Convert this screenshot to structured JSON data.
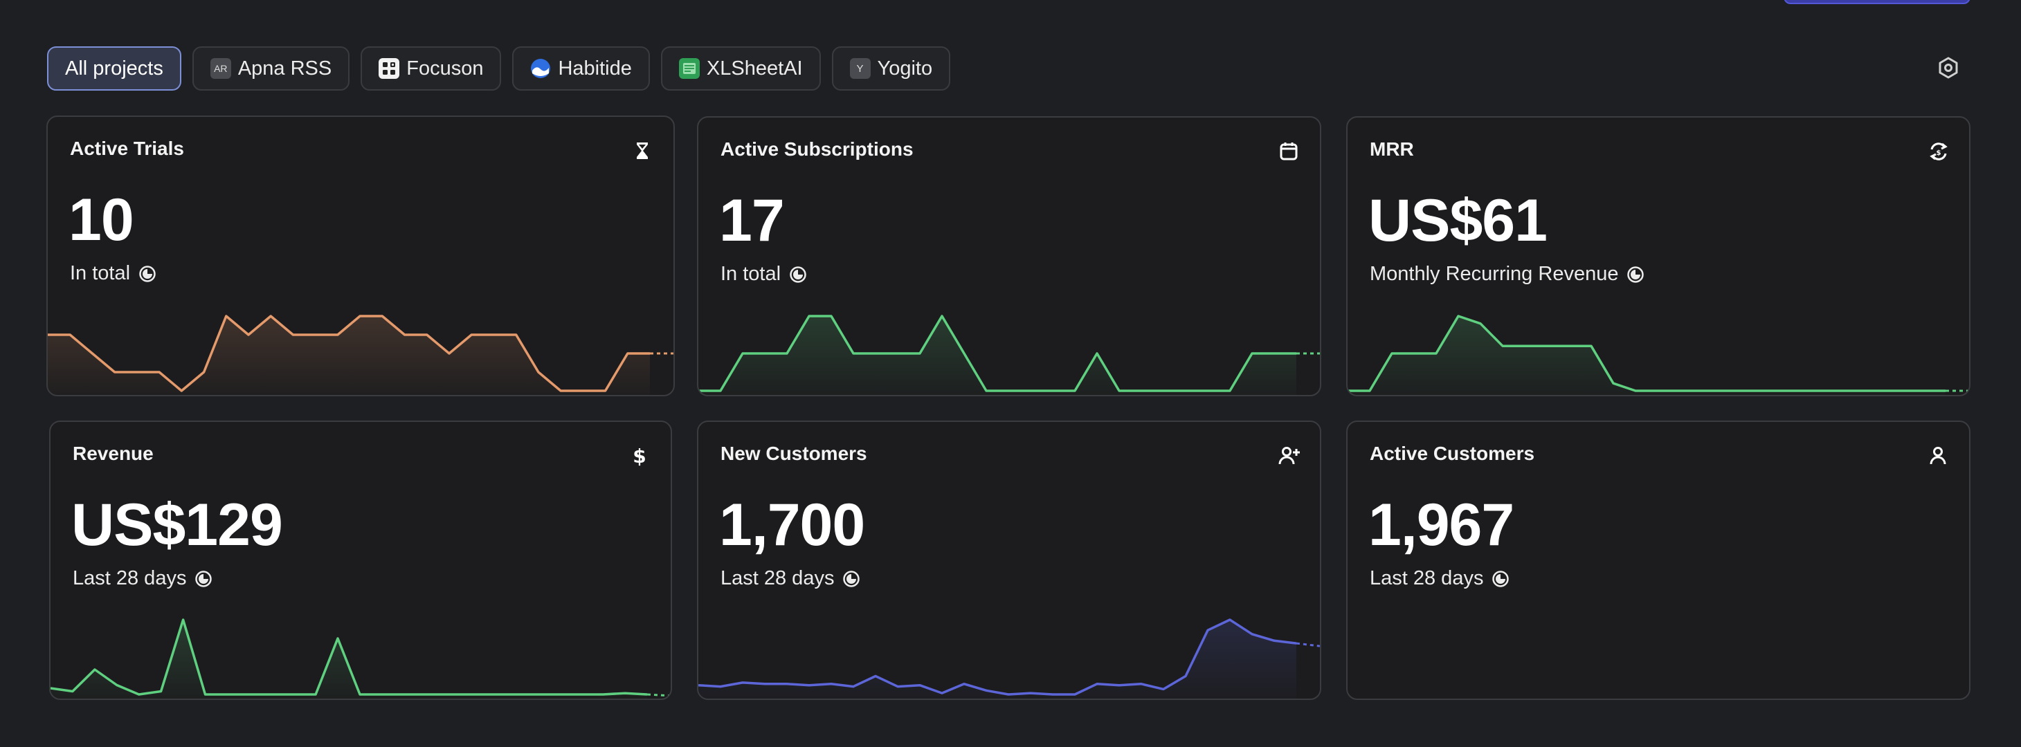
{
  "filters": [
    {
      "label": "All projects",
      "active": true,
      "icon": ""
    },
    {
      "label": "Apna RSS",
      "active": false,
      "icon": "AR"
    },
    {
      "label": "Focuson",
      "active": false,
      "icon": "focuson-app-icon"
    },
    {
      "label": "Habitide",
      "active": false,
      "icon": "habitide-app-icon"
    },
    {
      "label": "XLSheetAI",
      "active": false,
      "icon": "xlsheetai-app-icon"
    },
    {
      "label": "Yogito",
      "active": false,
      "icon": "Y"
    }
  ],
  "settings_icon": "settings-hex-icon",
  "cards": [
    {
      "title": "Active Trials",
      "icon": "hourglass-icon",
      "value": "10",
      "subtitle": "In total",
      "color": "#e59a6b",
      "chart_data": {
        "type": "line",
        "values": [
          3,
          3,
          2,
          1,
          1,
          1,
          0,
          1,
          4,
          3,
          4,
          3,
          3,
          3,
          4,
          4,
          3,
          3,
          2,
          3,
          3,
          3,
          1,
          0,
          0,
          0,
          2,
          2
        ],
        "projected_tail": true
      }
    },
    {
      "title": "Active Subscriptions",
      "icon": "calendar-icon",
      "value": "17",
      "subtitle": "In total",
      "color": "#5fcf80",
      "chart_data": {
        "type": "line",
        "values": [
          0,
          0,
          1,
          1,
          1,
          2,
          2,
          1,
          1,
          1,
          1,
          2,
          1,
          0,
          0,
          0,
          0,
          0,
          1,
          0,
          0,
          0,
          0,
          0,
          0,
          1,
          1,
          1
        ],
        "projected_tail": true
      }
    },
    {
      "title": "MRR",
      "icon": "refresh-dollar-icon",
      "value": "US$61",
      "subtitle": "Monthly Recurring Revenue",
      "color": "#5fcf80",
      "chart_data": {
        "type": "line",
        "values": [
          0,
          0,
          5,
          5,
          5,
          10,
          9,
          6,
          6,
          6,
          6,
          6,
          1,
          0,
          0,
          0,
          0,
          0,
          0,
          0,
          0,
          0,
          0,
          0,
          0,
          0,
          0,
          0
        ],
        "projected_tail": true
      }
    },
    {
      "title": "Revenue",
      "icon": "dollar-icon",
      "value": "US$129",
      "subtitle": "Last 28 days",
      "color": "#5fcf80",
      "chart_data": {
        "type": "line",
        "values": [
          1,
          0.5,
          4,
          1.5,
          0,
          0.5,
          12,
          0,
          0,
          0,
          0,
          0,
          0,
          9,
          0,
          0,
          0,
          0,
          0,
          0,
          0,
          0,
          0,
          0,
          0,
          0,
          0.2,
          0
        ],
        "projected_tail": true
      }
    },
    {
      "title": "New Customers",
      "icon": "user-plus-icon",
      "value": "1,700",
      "subtitle": "Last 28 days",
      "color": "#5c66d8",
      "chart_data": {
        "type": "line",
        "values": [
          18,
          17,
          20,
          19,
          19,
          18,
          19,
          17,
          25,
          17,
          18,
          12,
          19,
          14,
          11,
          12,
          11,
          11,
          19,
          18,
          19,
          15,
          25,
          60,
          68,
          57,
          52,
          50
        ],
        "projected_tail": true
      }
    },
    {
      "title": "Active Customers",
      "icon": "user-icon",
      "value": "1,967",
      "subtitle": "Last 28 days",
      "color": "#5fcf80",
      "chart_data": {
        "type": "line",
        "values": [],
        "projected_tail": false
      }
    }
  ]
}
